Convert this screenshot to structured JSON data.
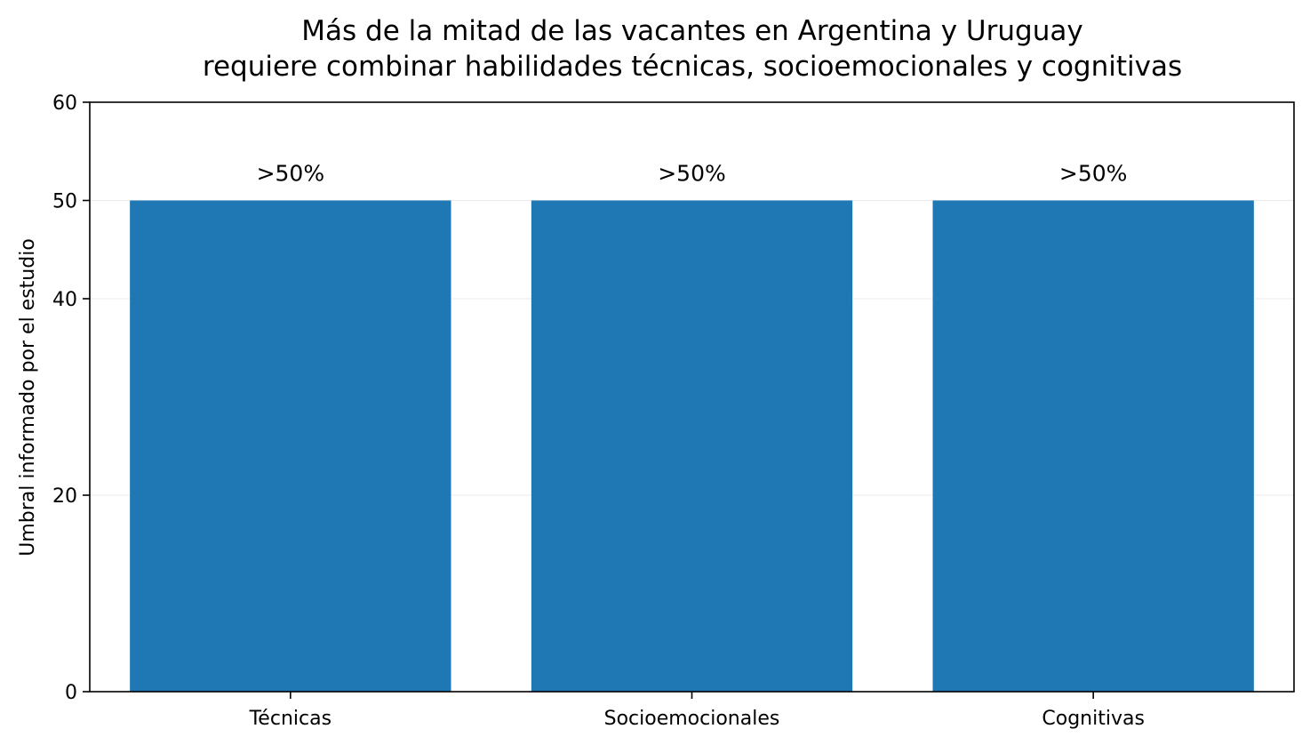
{
  "chart_data": {
    "type": "bar",
    "title_lines": [
      "Más de la mitad de las vacantes en Argentina y Uruguay",
      "requiere combinar habilidades técnicas, socioemocionales y cognitivas"
    ],
    "xlabel": "",
    "ylabel": "Umbral informado por el estudio",
    "categories": [
      "Técnicas",
      "Socioemocionales",
      "Cognitivas"
    ],
    "values": [
      50,
      50,
      50
    ],
    "data_labels": [
      ">50%",
      ">50%",
      ">50%"
    ],
    "ylim": [
      0,
      60
    ],
    "yticks": [
      0,
      20,
      40,
      50,
      60
    ],
    "grid": "horizontal, light",
    "legend": "none",
    "colors": {
      "bar": "#1f77b4",
      "grid": "#ebebeb",
      "axis": "#000000"
    }
  }
}
